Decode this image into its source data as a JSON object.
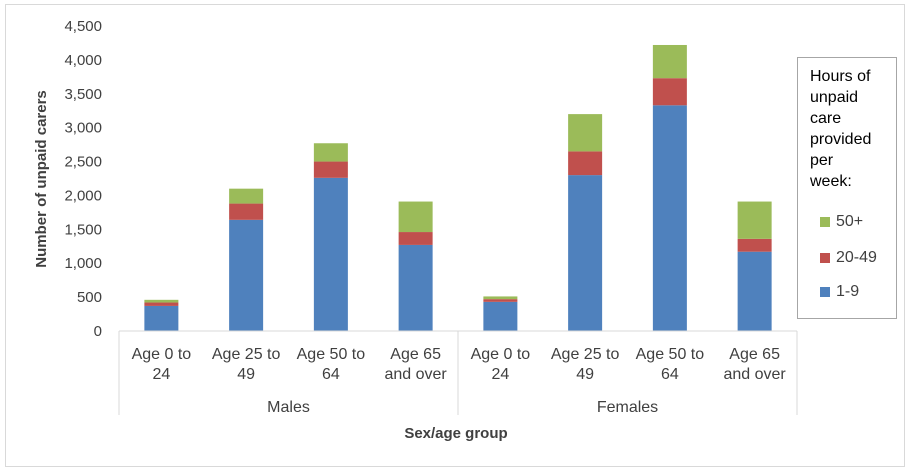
{
  "chart_data": {
    "type": "bar",
    "stacked": true,
    "title": "",
    "xlabel": "Sex/age group",
    "ylabel": "Number of unpaid carers",
    "ylim": [
      0,
      4500
    ],
    "yticks": [
      "0",
      "500",
      "1,000",
      "1,500",
      "2,000",
      "2,500",
      "3,000",
      "3,500",
      "4,000",
      "4,500"
    ],
    "groups": [
      {
        "name": "Males",
        "categories": [
          "Age 0 to 24",
          "Age 25 to 49",
          "Age 50 to 64",
          "Age 65 and over"
        ]
      },
      {
        "name": "Females",
        "categories": [
          "Age 0 to 24",
          "Age 25 to 49",
          "Age 50 to 64",
          "Age 65 and over"
        ]
      }
    ],
    "category_lines": [
      [
        "Age 0 to",
        "24"
      ],
      [
        "Age 25 to",
        "49"
      ],
      [
        "Age 50 to",
        "64"
      ],
      [
        "Age 65",
        "and over"
      ],
      [
        "Age 0 to",
        "24"
      ],
      [
        "Age 25 to",
        "49"
      ],
      [
        "Age 50 to",
        "64"
      ],
      [
        "Age 65",
        "and over"
      ]
    ],
    "series": [
      {
        "name": "1-9",
        "color": "#4f81bd",
        "values": [
          370,
          1640,
          2260,
          1270,
          430,
          2300,
          3330,
          1170
        ]
      },
      {
        "name": "20-49",
        "color": "#c0504d",
        "values": [
          50,
          240,
          240,
          190,
          40,
          350,
          400,
          190
        ]
      },
      {
        "name": "50+",
        "color": "#9bbb59",
        "values": [
          40,
          220,
          270,
          450,
          40,
          550,
          490,
          550
        ]
      }
    ],
    "legend": {
      "title_lines": [
        "Hours of",
        "unpaid",
        "care",
        "provided",
        "per",
        "week:"
      ],
      "position": "right",
      "order": [
        "50+",
        "20-49",
        "1-9"
      ]
    },
    "grid": false
  }
}
